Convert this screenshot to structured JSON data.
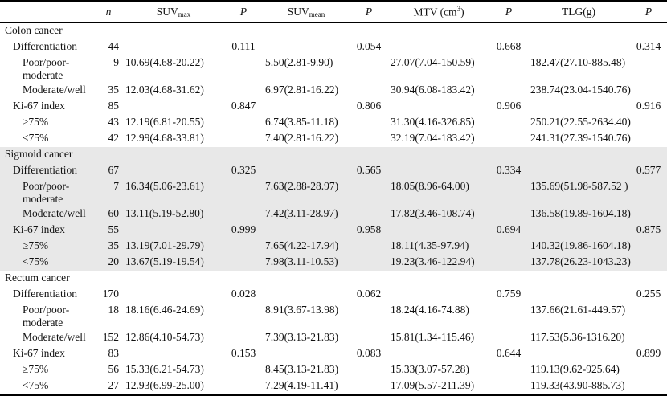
{
  "header": {
    "n": "n",
    "suvmax_base": "SUV",
    "suvmax_sub": "max",
    "p1": "P",
    "suvmean_base": "SUV",
    "suvmean_sub": "mean",
    "p2": "P",
    "mtv_base": "MTV (cm",
    "mtv_sup": "3",
    "mtv_close": ")",
    "p3": "P",
    "tlg": "TLG(g)",
    "p4": "P"
  },
  "sections": [
    {
      "title": "Colon cancer",
      "differentiation": {
        "label": "Differentiation",
        "n": "44",
        "p_max": "0.111",
        "p_mean": "0.054",
        "p_mtv": "0.668",
        "p_tlg": "0.314"
      },
      "poor": {
        "label1": "Poor/poor-",
        "label2": "moderate",
        "n": "9",
        "suvmax": "10.69(4.68-20.22)",
        "suvmean": "5.50(2.81-9.90)",
        "mtv": "27.07(7.04-150.59)",
        "tlg": "182.47(27.10-885.48)"
      },
      "moderate": {
        "label": "Moderate/well",
        "n": "35",
        "suvmax": "12.03(4.68-31.62)",
        "suvmean": "6.97(2.81-16.22)",
        "mtv": "30.94(6.08-183.42)",
        "tlg": "238.74(23.04-1540.76)"
      },
      "ki67": {
        "label": "Ki-67 index",
        "n": "85",
        "p_max": "0.847",
        "p_mean": "0.806",
        "p_mtv": "0.906",
        "p_tlg": "0.916"
      },
      "ge75": {
        "label": "≥75%",
        "n": "43",
        "suvmax": "12.19(6.81-20.55)",
        "suvmean": "6.74(3.85-11.18)",
        "mtv": "31.30(4.16-326.85)",
        "tlg": "250.21(22.55-2634.40)"
      },
      "lt75": {
        "label": "<75%",
        "n": "42",
        "suvmax": "12.99(4.68-33.81)",
        "suvmean": "7.40(2.81-16.22)",
        "mtv": "32.19(7.04-183.42)",
        "tlg": "241.31(27.39-1540.76)"
      }
    },
    {
      "title": "Sigmoid cancer",
      "differentiation": {
        "label": "Differentiation",
        "n": "67",
        "p_max": "0.325",
        "p_mean": "0.565",
        "p_mtv": "0.334",
        "p_tlg": "0.577"
      },
      "poor": {
        "label1": "Poor/poor-",
        "label2": "moderate",
        "n": "7",
        "suvmax": "16.34(5.06-23.61)",
        "suvmean": "7.63(2.88-28.97)",
        "mtv": "18.05(8.96-64.00)",
        "tlg": "135.69(51.98-587.52 )"
      },
      "moderate": {
        "label": "Moderate/well",
        "n": "60",
        "suvmax": "13.11(5.19-52.80)",
        "suvmean": "7.42(3.11-28.97)",
        "mtv": "17.82(3.46-108.74)",
        "tlg": "136.58(19.89-1604.18)"
      },
      "ki67": {
        "label": "Ki-67 index",
        "n": "55",
        "p_max": "0.999",
        "p_mean": "0.958",
        "p_mtv": "0.694",
        "p_tlg": "0.875"
      },
      "ge75": {
        "label": "≥75%",
        "n": "35",
        "suvmax": "13.19(7.01-29.79)",
        "suvmean": "7.65(4.22-17.94)",
        "mtv": "18.11(4.35-97.94)",
        "tlg": "140.32(19.86-1604.18)"
      },
      "lt75": {
        "label": "<75%",
        "n": "20",
        "suvmax": "13.67(5.19-19.54)",
        "suvmean": "7.98(3.11-10.53)",
        "mtv": "19.23(3.46-122.94)",
        "tlg": "137.78(26.23-1043.23)"
      }
    },
    {
      "title": "Rectum cancer",
      "differentiation": {
        "label": "Differentiation",
        "n": "170",
        "p_max": "0.028",
        "p_mean": "0.062",
        "p_mtv": "0.759",
        "p_tlg": "0.255"
      },
      "poor": {
        "label1": "Poor/poor-",
        "label2": "moderate",
        "n": "18",
        "suvmax": "18.16(6.46-24.69)",
        "suvmean": "8.91(3.67-13.98)",
        "mtv": "18.24(4.16-74.88)",
        "tlg": "137.66(21.61-449.57)"
      },
      "moderate": {
        "label": "Moderate/well",
        "n": "152",
        "suvmax": "12.86(4.10-54.73)",
        "suvmean": "7.39(3.13-21.83)",
        "mtv": "15.81(1.34-115.46)",
        "tlg": "117.53(5.36-1316.20)"
      },
      "ki67": {
        "label": "Ki-67 index",
        "n": "83",
        "p_max": "0.153",
        "p_mean": "0.083",
        "p_mtv": "0.644",
        "p_tlg": "0.899"
      },
      "ge75": {
        "label": "≥75%",
        "n": "56",
        "suvmax": "15.33(6.21-54.73)",
        "suvmean": "8.45(3.13-21.83)",
        "mtv": "15.33(3.07-57.28)",
        "tlg": "119.13(9.62-925.64)"
      },
      "lt75": {
        "label": "<75%",
        "n": "27",
        "suvmax": "12.93(6.99-25.00)",
        "suvmean": "7.29(4.19-11.41)",
        "mtv": "17.09(5.57-211.39)",
        "tlg": "119.33(43.90-885.73)"
      }
    }
  ]
}
